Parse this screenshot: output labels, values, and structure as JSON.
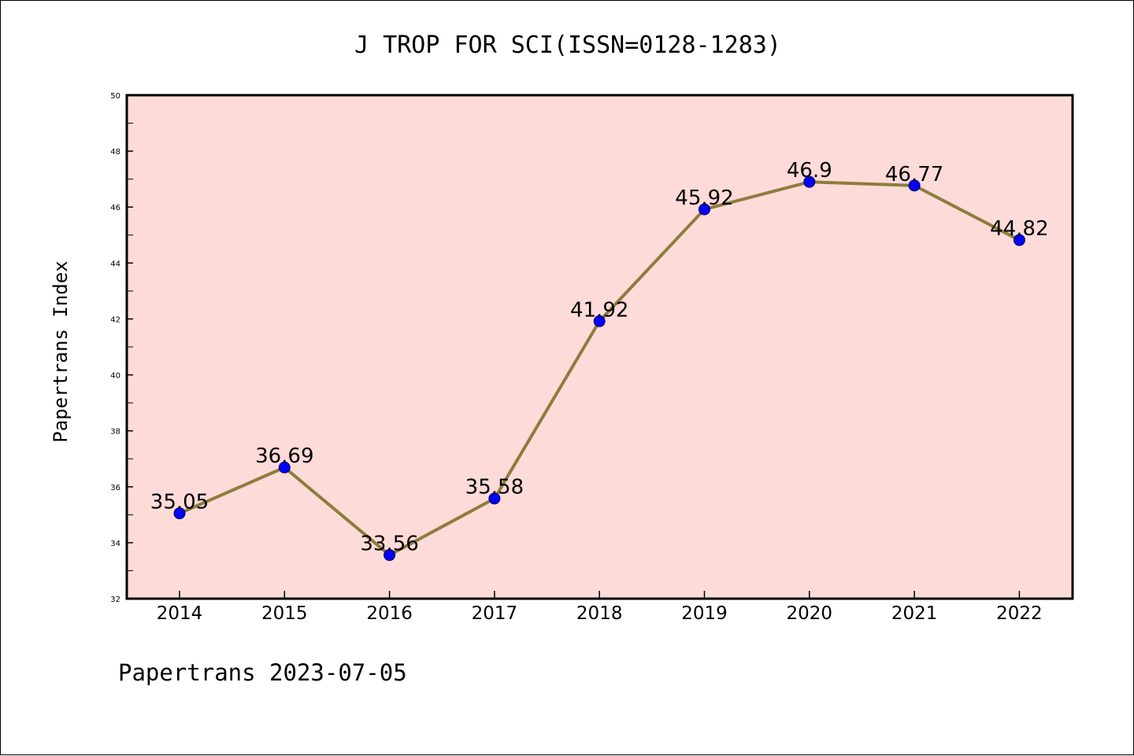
{
  "chart_data": {
    "type": "line",
    "title": "J TROP FOR SCI(ISSN=0128-1283)",
    "xlabel": "",
    "ylabel": "Papertrans Index",
    "categories": [
      "2014",
      "2015",
      "2016",
      "2017",
      "2018",
      "2019",
      "2020",
      "2021",
      "2022"
    ],
    "series": [
      {
        "values": [
          35.05,
          36.69,
          33.56,
          35.58,
          41.92,
          45.92,
          46.9,
          46.77,
          44.82
        ],
        "labels": [
          "35.05",
          "36.69",
          "33.56",
          "35.58",
          "41.92",
          "45.92",
          "46.9",
          "46.77",
          "44.82"
        ]
      }
    ],
    "ylim": [
      32,
      50
    ],
    "yticks": [
      "32",
      "34",
      "36",
      "38",
      "40",
      "42",
      "44",
      "46",
      "48",
      "50"
    ],
    "grid": false,
    "legend": "none"
  },
  "footer": {
    "text": "Papertrans 2023-07-05"
  },
  "colors": {
    "plot_background": "#fddbd9",
    "line": "#8d7d3d",
    "marker": "#0000ff",
    "marker_edge": "#00004c",
    "axes": "#000000"
  }
}
